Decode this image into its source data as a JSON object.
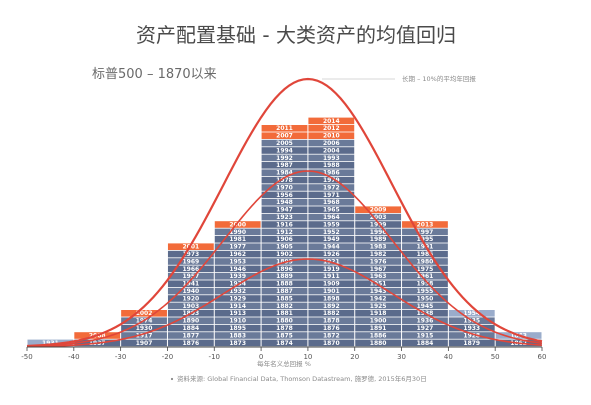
{
  "chart_data": {
    "type": "bar",
    "title": "资产配置基础 - 大类资产的均值回归",
    "subtitle": "标普500 – 1870以来",
    "annotation": "长期 – 10%的平均年回报",
    "xlabel": "每年名义总回报 %",
    "source": "资料来源: Global Financial Data, Thomson Datastream, 施罗德, 2015年6月30日",
    "x_ticks": [
      -50,
      -40,
      -30,
      -20,
      -10,
      0,
      10,
      20,
      30,
      40,
      50,
      60
    ],
    "xlim": [
      -50,
      60
    ],
    "mean_line": 10,
    "bins": [
      {
        "range": [
          -50,
          -40
        ],
        "years": [
          "1931"
        ]
      },
      {
        "range": [
          -40,
          -30
        ],
        "years": [
          "1937",
          "2008"
        ]
      },
      {
        "range": [
          -30,
          -20
        ],
        "years": [
          "1907",
          "1917",
          "1930",
          "1974",
          "2002"
        ]
      },
      {
        "range": [
          -20,
          -10
        ],
        "years": [
          "1876",
          "1877",
          "1884",
          "1890",
          "1893",
          "1903",
          "1920",
          "1940",
          "1941",
          "1957",
          "1966",
          "1969",
          "1973",
          "2001"
        ]
      },
      {
        "range": [
          -10,
          0
        ],
        "years": [
          "1873",
          "1883",
          "1895",
          "1910",
          "1913",
          "1914",
          "1929",
          "1932",
          "1934",
          "1939",
          "1946",
          "1953",
          "1962",
          "1977",
          "1981",
          "1990",
          "2000"
        ]
      },
      {
        "range": [
          0,
          10
        ],
        "years": [
          "1874",
          "1875",
          "1878",
          "1880",
          "1881",
          "1882",
          "1885",
          "1887",
          "1888",
          "1889",
          "1896",
          "1899",
          "1902",
          "1905",
          "1906",
          "1912",
          "1916",
          "1923",
          "1947",
          "1948",
          "1956",
          "1970",
          "1978",
          "1984",
          "1987",
          "1992",
          "1994",
          "2005",
          "2007",
          "2011"
        ]
      },
      {
        "range": [
          10,
          20
        ],
        "years": [
          "1870",
          "1872",
          "1876",
          "1878",
          "1882",
          "1892",
          "1898",
          "1901",
          "1909",
          "1911",
          "1919",
          "1921",
          "1926",
          "1944",
          "1949",
          "1952",
          "1959",
          "1964",
          "1965",
          "1968",
          "1971",
          "1972",
          "1979",
          "1986",
          "1988",
          "1993",
          "2004",
          "2006",
          "2010",
          "2012",
          "2014"
        ]
      },
      {
        "range": [
          20,
          30
        ],
        "years": [
          "1880",
          "1886",
          "1891",
          "1900",
          "1918",
          "1925",
          "1942",
          "1943",
          "1951",
          "1963",
          "1967",
          "1976",
          "1982",
          "1983",
          "1989",
          "1996",
          "1999",
          "2003",
          "2009"
        ]
      },
      {
        "range": [
          30,
          40
        ],
        "years": [
          "1884",
          "1915",
          "1927",
          "1936",
          "1938",
          "1945",
          "1950",
          "1955",
          "1958",
          "1961",
          "1975",
          "1980",
          "1985",
          "1991",
          "1995",
          "1997",
          "2013"
        ]
      },
      {
        "range": [
          40,
          50
        ],
        "years": [
          "1879",
          "1928",
          "1933",
          "1935",
          "1954"
        ]
      },
      {
        "range": [
          50,
          60
        ],
        "years": [
          "1862",
          "1863"
        ]
      }
    ],
    "colors": {
      "cell_dark": "#5b6b8c",
      "cell_light": "#9aaccb",
      "cell_highlight": "#f26b3a",
      "curve": "#e0463a",
      "axis": "#444444"
    }
  }
}
